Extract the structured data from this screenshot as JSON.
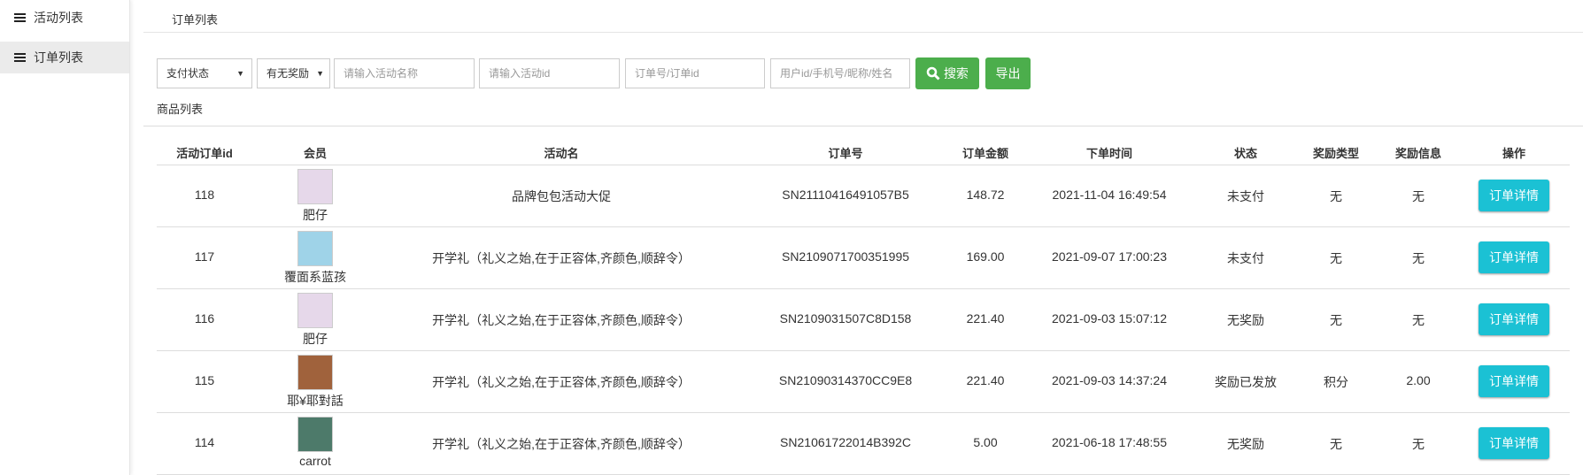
{
  "sidebar": {
    "items": [
      "活动列表",
      "订单列表"
    ]
  },
  "breadcrumb": "订单列表",
  "filters": {
    "selects": [
      "支付状态",
      "有无奖励"
    ],
    "inputs": [
      "请输入活动名称",
      "请输入活动id",
      "订单号/订单id",
      "用户id/手机号/昵称/姓名"
    ],
    "search_button": "搜索",
    "export_button": "导出"
  },
  "section_title": "商品列表",
  "table": {
    "headers": [
      "活动订单id",
      "会员",
      "活动名",
      "订单号",
      "订单金额",
      "下单时间",
      "状态",
      "奖励类型",
      "奖励信息",
      "操作"
    ],
    "action_label": "订单详情",
    "rows": [
      [
        "118",
        "肥仔",
        "品牌包包活动大促",
        "SN21110416491057B5",
        "148.72",
        "2021-11-04 16:49:54",
        "未支付",
        "无",
        "无"
      ],
      [
        "117",
        "覆面系蓝孩",
        "开学礼（礼义之始,在于正容体,齐颜色,顺辞令）",
        "SN2109071700351995",
        "169.00",
        "2021-09-07 17:00:23",
        "未支付",
        "无",
        "无"
      ],
      [
        "116",
        "肥仔",
        "开学礼（礼义之始,在于正容体,齐颜色,顺辞令）",
        "SN2109031507C8D158",
        "221.40",
        "2021-09-03 15:07:12",
        "无奖励",
        "无",
        "无"
      ],
      [
        "115",
        "耶¥耶對話",
        "开学礼（礼义之始,在于正容体,齐颜色,顺辞令）",
        "SN21090314370CC9E8",
        "221.40",
        "2021-09-03 14:37:24",
        "奖励已发放",
        "积分",
        "2.00"
      ],
      [
        "114",
        "carrot",
        "开学礼（礼义之始,在于正容体,齐颜色,顺辞令）",
        "SN21061722014B392C",
        "5.00",
        "2021-06-18 17:48:55",
        "无奖励",
        "无",
        "无"
      ]
    ]
  }
}
